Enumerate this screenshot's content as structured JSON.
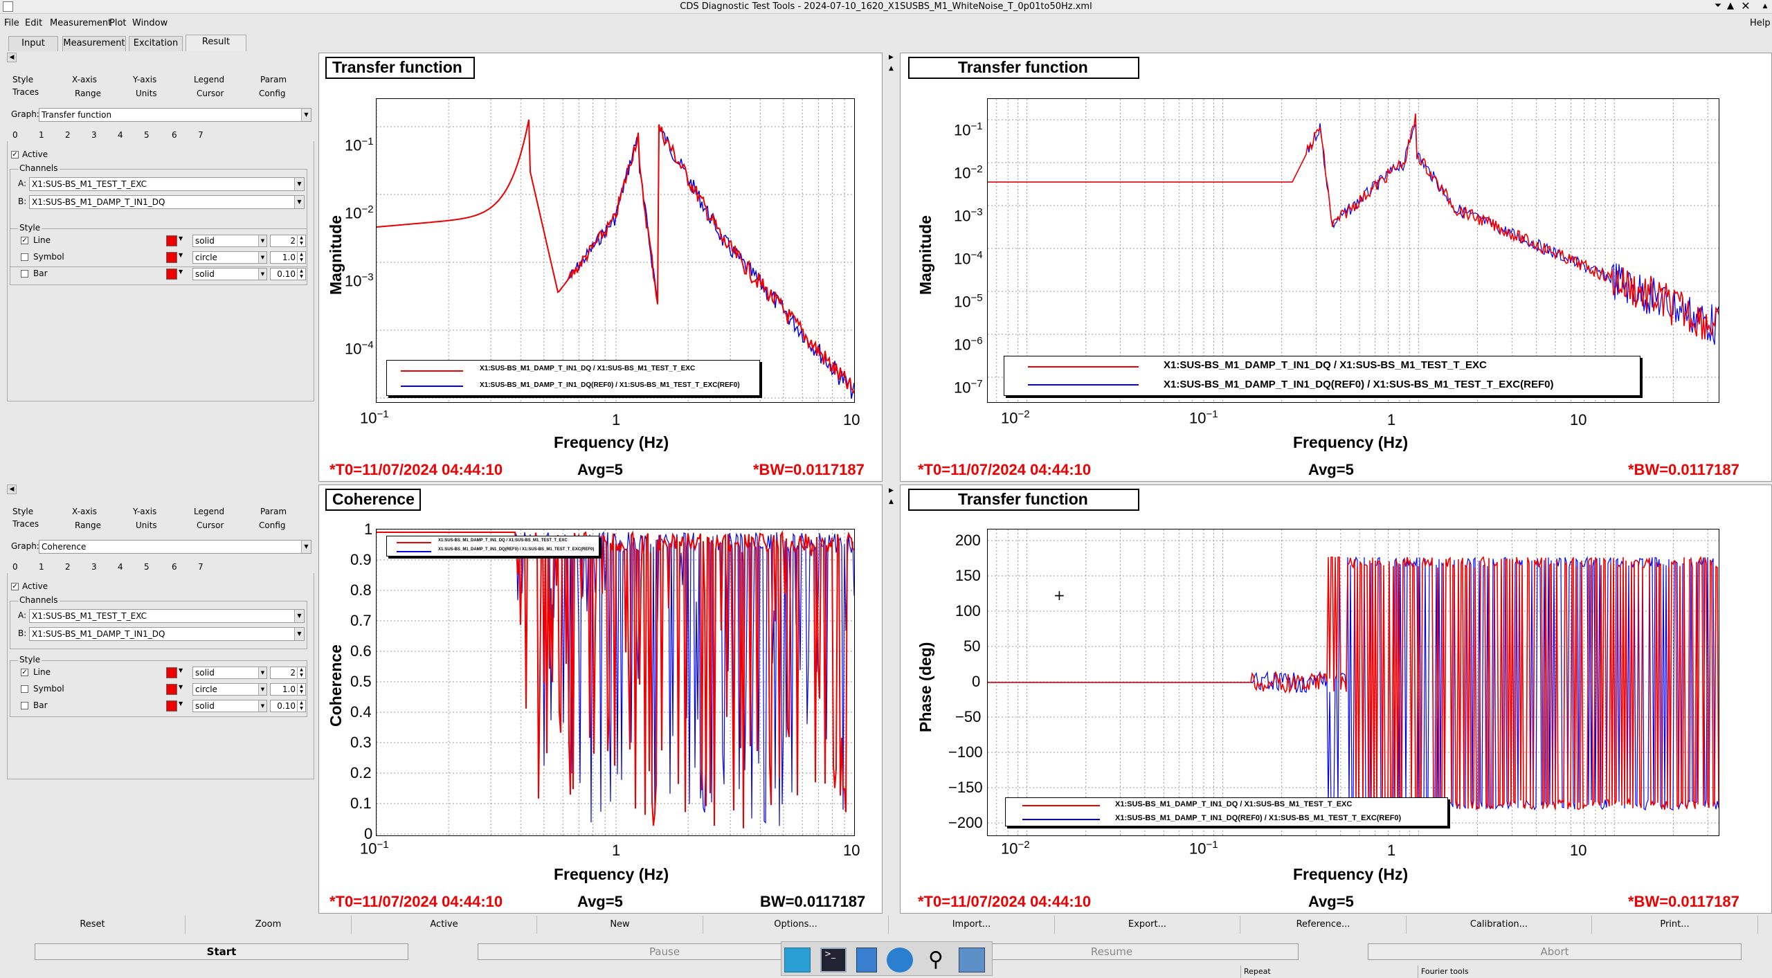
{
  "window": {
    "title": "CDS Diagnostic Test Tools - 2024-07-10_1620_X1SUSBS_M1_WhiteNoise_T_0p01to50Hz.xml",
    "help": "Help"
  },
  "menu": [
    "File",
    "Edit",
    "Measurement",
    "Plot",
    "Window"
  ],
  "tabs": [
    "Input",
    "Measurement",
    "Excitation",
    "Result"
  ],
  "side_panels": [
    {
      "tabs_row1": [
        "Style",
        "X-axis",
        "Y-axis",
        "Legend",
        "Param"
      ],
      "tabs_row2": [
        "Traces",
        "Range",
        "Units",
        "Cursor",
        "Config"
      ],
      "graph_label": "Graph:",
      "graph_value": "Transfer function",
      "trace_tabs": [
        "0",
        "1",
        "2",
        "3",
        "4",
        "5",
        "6",
        "7"
      ],
      "active_label": "Active",
      "channels_label": "Channels",
      "chan_a_label": "A:",
      "chan_a": "X1:SUS-BS_M1_TEST_T_EXC",
      "chan_b_label": "B:",
      "chan_b": "X1:SUS-BS_M1_DAMP_T_IN1_DQ",
      "style_label": "Style",
      "line_label": "Line",
      "line_style": "solid",
      "line_width": "2",
      "symbol_label": "Symbol",
      "symbol_style": "circle",
      "symbol_size": "1.0",
      "bar_label": "Bar",
      "bar_style": "solid",
      "bar_width": "0.10"
    },
    {
      "tabs_row1": [
        "Style",
        "X-axis",
        "Y-axis",
        "Legend",
        "Param"
      ],
      "tabs_row2": [
        "Traces",
        "Range",
        "Units",
        "Cursor",
        "Config"
      ],
      "graph_label": "Graph:",
      "graph_value": "Coherence",
      "trace_tabs": [
        "0",
        "1",
        "2",
        "3",
        "4",
        "5",
        "6",
        "7"
      ],
      "active_label": "Active",
      "channels_label": "Channels",
      "chan_a_label": "A:",
      "chan_a": "X1:SUS-BS_M1_TEST_T_EXC",
      "chan_b_label": "B:",
      "chan_b": "X1:SUS-BS_M1_DAMP_T_IN1_DQ",
      "style_label": "Style",
      "line_label": "Line",
      "line_style": "solid",
      "line_width": "2",
      "symbol_label": "Symbol",
      "symbol_style": "circle",
      "symbol_size": "1.0",
      "bar_label": "Bar",
      "bar_style": "solid",
      "bar_width": "0.10"
    }
  ],
  "plots": [
    {
      "title": "Transfer function",
      "ylabel": "Magnitude",
      "xlabel": "Frequency (Hz)",
      "stat_t0": "*T0=11/07/2024 04:44:10",
      "stat_avg": "Avg=5",
      "stat_bw": "*BW=0.0117187",
      "legend": [
        "X1:SUS-BS_M1_DAMP_T_IN1_DQ / X1:SUS-BS_M1_TEST_T_EXC",
        "X1:SUS-BS_M1_DAMP_T_IN1_DQ(REF0) / X1:SUS-BS_M1_TEST_T_EXC(REF0)"
      ]
    },
    {
      "title": "Transfer function",
      "ylabel": "Magnitude",
      "xlabel": "Frequency (Hz)",
      "stat_t0": "*T0=11/07/2024 04:44:10",
      "stat_avg": "Avg=5",
      "stat_bw": "*BW=0.0117187",
      "legend": [
        "X1:SUS-BS_M1_DAMP_T_IN1_DQ / X1:SUS-BS_M1_TEST_T_EXC",
        "X1:SUS-BS_M1_DAMP_T_IN1_DQ(REF0) / X1:SUS-BS_M1_TEST_T_EXC(REF0)"
      ]
    },
    {
      "title": "Coherence",
      "ylabel": "Coherence",
      "xlabel": "Frequency (Hz)",
      "stat_t0": "*T0=11/07/2024 04:44:10",
      "stat_avg": "Avg=5",
      "stat_bw": "BW=0.0117187",
      "legend": [
        "X1:SUS-BS_M1_DAMP_T_IN1_DQ / X1:SUS-BS_M1_TEST_T_EXC",
        "X1:SUS-BS_M1_DAMP_T_IN1_DQ(REF0) / X1:SUS-BS_M1_TEST_T_EXC(REF0)"
      ]
    },
    {
      "title": "Transfer function",
      "ylabel": "Phase (deg)",
      "xlabel": "Frequency (Hz)",
      "stat_t0": "*T0=11/07/2024 04:44:10",
      "stat_avg": "Avg=5",
      "stat_bw": "*BW=0.0117187",
      "legend": [
        "X1:SUS-BS_M1_DAMP_T_IN1_DQ / X1:SUS-BS_M1_TEST_T_EXC",
        "X1:SUS-BS_M1_DAMP_T_IN1_DQ(REF0) / X1:SUS-BS_M1_TEST_T_EXC(REF0)"
      ]
    }
  ],
  "bottom_buttons": [
    "Reset",
    "Zoom",
    "Active",
    "New",
    "Options...",
    "Import...",
    "Export...",
    "Reference...",
    "Calibration...",
    "Print..."
  ],
  "controls": [
    "Start",
    "Pause",
    "Resume",
    "Abort"
  ],
  "status": [
    "Repeat",
    "Fourier tools"
  ],
  "taskbar_icons": [
    "terminal-window-icon",
    "terminal-icon",
    "text-editor-icon",
    "browser-globe-icon",
    "search-magnifier-icon",
    "file-manager-icon"
  ],
  "colors": {
    "trace_a": "#ff0000",
    "trace_ref": "#0000ff"
  }
}
